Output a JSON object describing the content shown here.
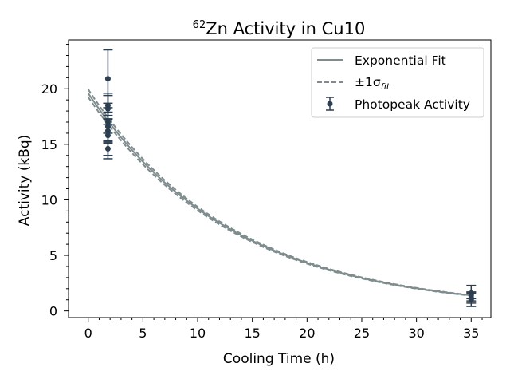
{
  "chart_data": {
    "type": "scatter",
    "title_main": "Zn Activity in Cu10",
    "title_superscript": "62",
    "xlabel": "Cooling Time (h)",
    "ylabel": "Activity (kBq)",
    "xlim": [
      -1.8,
      36.8
    ],
    "ylim": [
      -0.6,
      24.4
    ],
    "xticks": [
      0,
      5,
      10,
      15,
      20,
      25,
      30,
      35
    ],
    "yticks": [
      0,
      5,
      10,
      15,
      20
    ],
    "grid": false,
    "legend_position": "top-right",
    "legend": {
      "fit_label": "Exponential Fit",
      "band_label_prefix": "±1σ",
      "band_label_sub": "fit",
      "points_label": "Photopeak Activity"
    },
    "fit": {
      "A0": 19.6,
      "lambda": 0.0755,
      "x_range": [
        0,
        35
      ],
      "band_offset": 0.35
    },
    "series": [
      {
        "name": "Photopeak Activity",
        "points": [
          {
            "x": 1.8,
            "y": 20.9,
            "yerr": 2.6
          },
          {
            "x": 1.8,
            "y": 18.5,
            "yerr": 0.9
          },
          {
            "x": 1.8,
            "y": 18.2,
            "yerr": 1.4
          },
          {
            "x": 1.8,
            "y": 17.0,
            "yerr": 1.7
          },
          {
            "x": 1.8,
            "y": 16.6,
            "yerr": 0.6
          },
          {
            "x": 1.8,
            "y": 16.2,
            "yerr": 1.1
          },
          {
            "x": 1.8,
            "y": 15.8,
            "yerr": 2.1
          },
          {
            "x": 1.8,
            "y": 14.6,
            "yerr": 0.6
          },
          {
            "x": 35.0,
            "y": 1.6,
            "yerr": 0.7
          },
          {
            "x": 35.0,
            "y": 1.4,
            "yerr": 0.3
          },
          {
            "x": 35.0,
            "y": 1.2,
            "yerr": 0.5
          },
          {
            "x": 35.0,
            "y": 1.0,
            "yerr": 0.6
          }
        ]
      }
    ],
    "colors": {
      "fit": "#7f8c8d",
      "points": "#2c3e50",
      "axes": "#000000"
    }
  }
}
